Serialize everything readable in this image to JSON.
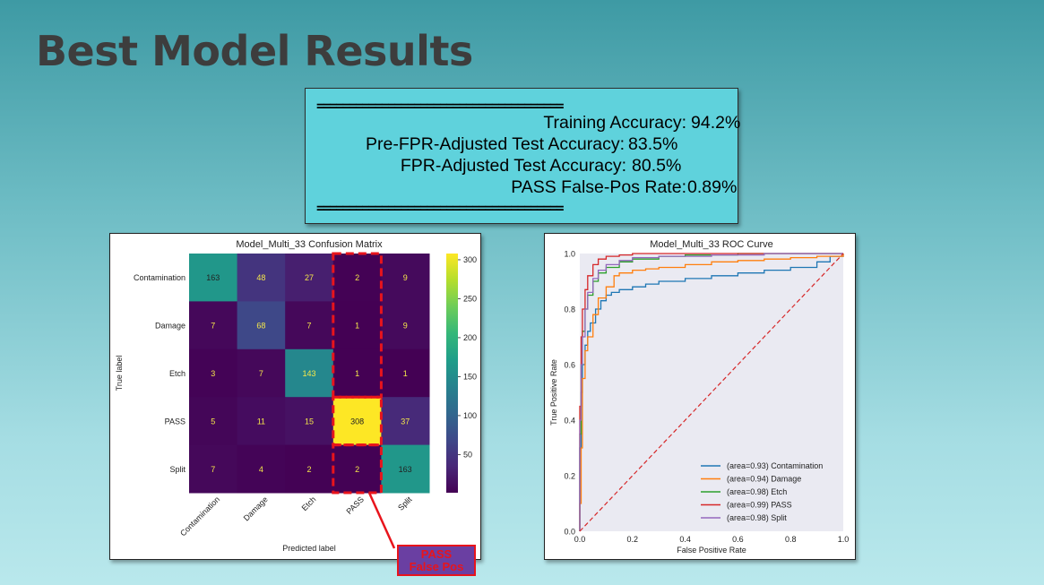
{
  "slide": {
    "title": "Best Model Results"
  },
  "stats": {
    "divider": "======================================",
    "rows": [
      {
        "label": "Training Accuracy:",
        "value": "94.2%"
      },
      {
        "label": "Pre-FPR-Adjusted Test Accuracy:",
        "value": "83.5%"
      },
      {
        "label": "FPR-Adjusted Test Accuracy:",
        "value": "80.5%"
      },
      {
        "label": "PASS False-Pos Rate:",
        "value": "0.89%"
      }
    ]
  },
  "annotation": {
    "line1": "PASS",
    "line2": "False Pos"
  },
  "chart_data": [
    {
      "type": "heatmap",
      "title": "Model_Multi_33 Confusion Matrix",
      "xlabel": "Predicted label",
      "ylabel": "True label",
      "x_categories": [
        "Contamination",
        "Damage",
        "Etch",
        "PASS",
        "Split"
      ],
      "y_categories": [
        "Contamination",
        "Damage",
        "Etch",
        "PASS",
        "Split"
      ],
      "values": [
        [
          163,
          48,
          27,
          2,
          9
        ],
        [
          7,
          68,
          7,
          1,
          9
        ],
        [
          3,
          7,
          143,
          1,
          1
        ],
        [
          5,
          11,
          15,
          308,
          37
        ],
        [
          7,
          4,
          2,
          2,
          163
        ]
      ],
      "colormap": "viridis",
      "colorbar_ticks": [
        50,
        100,
        150,
        200,
        250,
        300
      ],
      "highlight_color": "#e8141c"
    },
    {
      "type": "line",
      "title": "Model_Multi_33 ROC Curve",
      "xlabel": "False Positive Rate",
      "ylabel": "True Positive Rate",
      "xlim": [
        0.0,
        1.0
      ],
      "ylim": [
        0.0,
        1.0
      ],
      "xticks": [
        "0.0",
        "0.2",
        "0.4",
        "0.6",
        "0.8",
        "1.0"
      ],
      "yticks": [
        "0.0",
        "0.2",
        "0.4",
        "0.6",
        "0.8",
        "1.0"
      ],
      "legend_position": "lower-right",
      "grid": false,
      "series": [
        {
          "name": "(area=0.93) Contamination",
          "color": "#1f77b4",
          "x": [
            0,
            0.0,
            0.005,
            0.01,
            0.02,
            0.03,
            0.04,
            0.06,
            0.08,
            0.1,
            0.12,
            0.15,
            0.2,
            0.25,
            0.3,
            0.4,
            0.5,
            0.6,
            0.7,
            0.8,
            0.9,
            0.95,
            1.0
          ],
          "y": [
            0,
            0.3,
            0.5,
            0.6,
            0.67,
            0.72,
            0.75,
            0.8,
            0.83,
            0.85,
            0.86,
            0.87,
            0.88,
            0.89,
            0.9,
            0.91,
            0.92,
            0.93,
            0.94,
            0.95,
            0.97,
            0.99,
            1.0
          ]
        },
        {
          "name": "(area=0.94) Damage",
          "color": "#ff7f0e",
          "x": [
            0,
            0.0,
            0.005,
            0.01,
            0.02,
            0.03,
            0.05,
            0.07,
            0.1,
            0.13,
            0.15,
            0.2,
            0.25,
            0.3,
            0.4,
            0.5,
            0.6,
            0.7,
            0.8,
            0.9,
            1.0
          ],
          "y": [
            0,
            0.1,
            0.3,
            0.55,
            0.65,
            0.7,
            0.78,
            0.84,
            0.88,
            0.92,
            0.93,
            0.94,
            0.945,
            0.95,
            0.96,
            0.97,
            0.975,
            0.98,
            0.985,
            0.99,
            1.0
          ]
        },
        {
          "name": "(area=0.98) Etch",
          "color": "#2ca02c",
          "x": [
            0,
            0.0,
            0.005,
            0.01,
            0.02,
            0.03,
            0.05,
            0.07,
            0.1,
            0.15,
            0.2,
            0.3,
            0.4,
            0.6,
            0.8,
            1.0
          ],
          "y": [
            0,
            0.35,
            0.6,
            0.72,
            0.8,
            0.85,
            0.9,
            0.93,
            0.95,
            0.97,
            0.98,
            0.99,
            0.995,
            1.0,
            1.0,
            1.0
          ]
        },
        {
          "name": "(area=0.99) PASS",
          "color": "#d62728",
          "x": [
            0,
            0.0,
            0.005,
            0.01,
            0.02,
            0.03,
            0.05,
            0.07,
            0.1,
            0.15,
            0.2,
            0.3,
            0.5,
            0.7,
            1.0
          ],
          "y": [
            0,
            0.45,
            0.7,
            0.8,
            0.87,
            0.92,
            0.96,
            0.98,
            0.99,
            0.995,
            1.0,
            1.0,
            1.0,
            1.0,
            1.0
          ]
        },
        {
          "name": "(area=0.98) Split",
          "color": "#9467bd",
          "x": [
            0,
            0.0,
            0.005,
            0.01,
            0.02,
            0.03,
            0.05,
            0.07,
            0.1,
            0.15,
            0.2,
            0.3,
            0.5,
            0.7,
            1.0
          ],
          "y": [
            0,
            0.4,
            0.6,
            0.7,
            0.8,
            0.86,
            0.91,
            0.94,
            0.96,
            0.975,
            0.985,
            0.99,
            0.995,
            1.0,
            1.0
          ]
        },
        {
          "name": "",
          "color": "#d62728",
          "x": [
            0,
            1
          ],
          "y": [
            0,
            1
          ]
        }
      ]
    }
  ]
}
